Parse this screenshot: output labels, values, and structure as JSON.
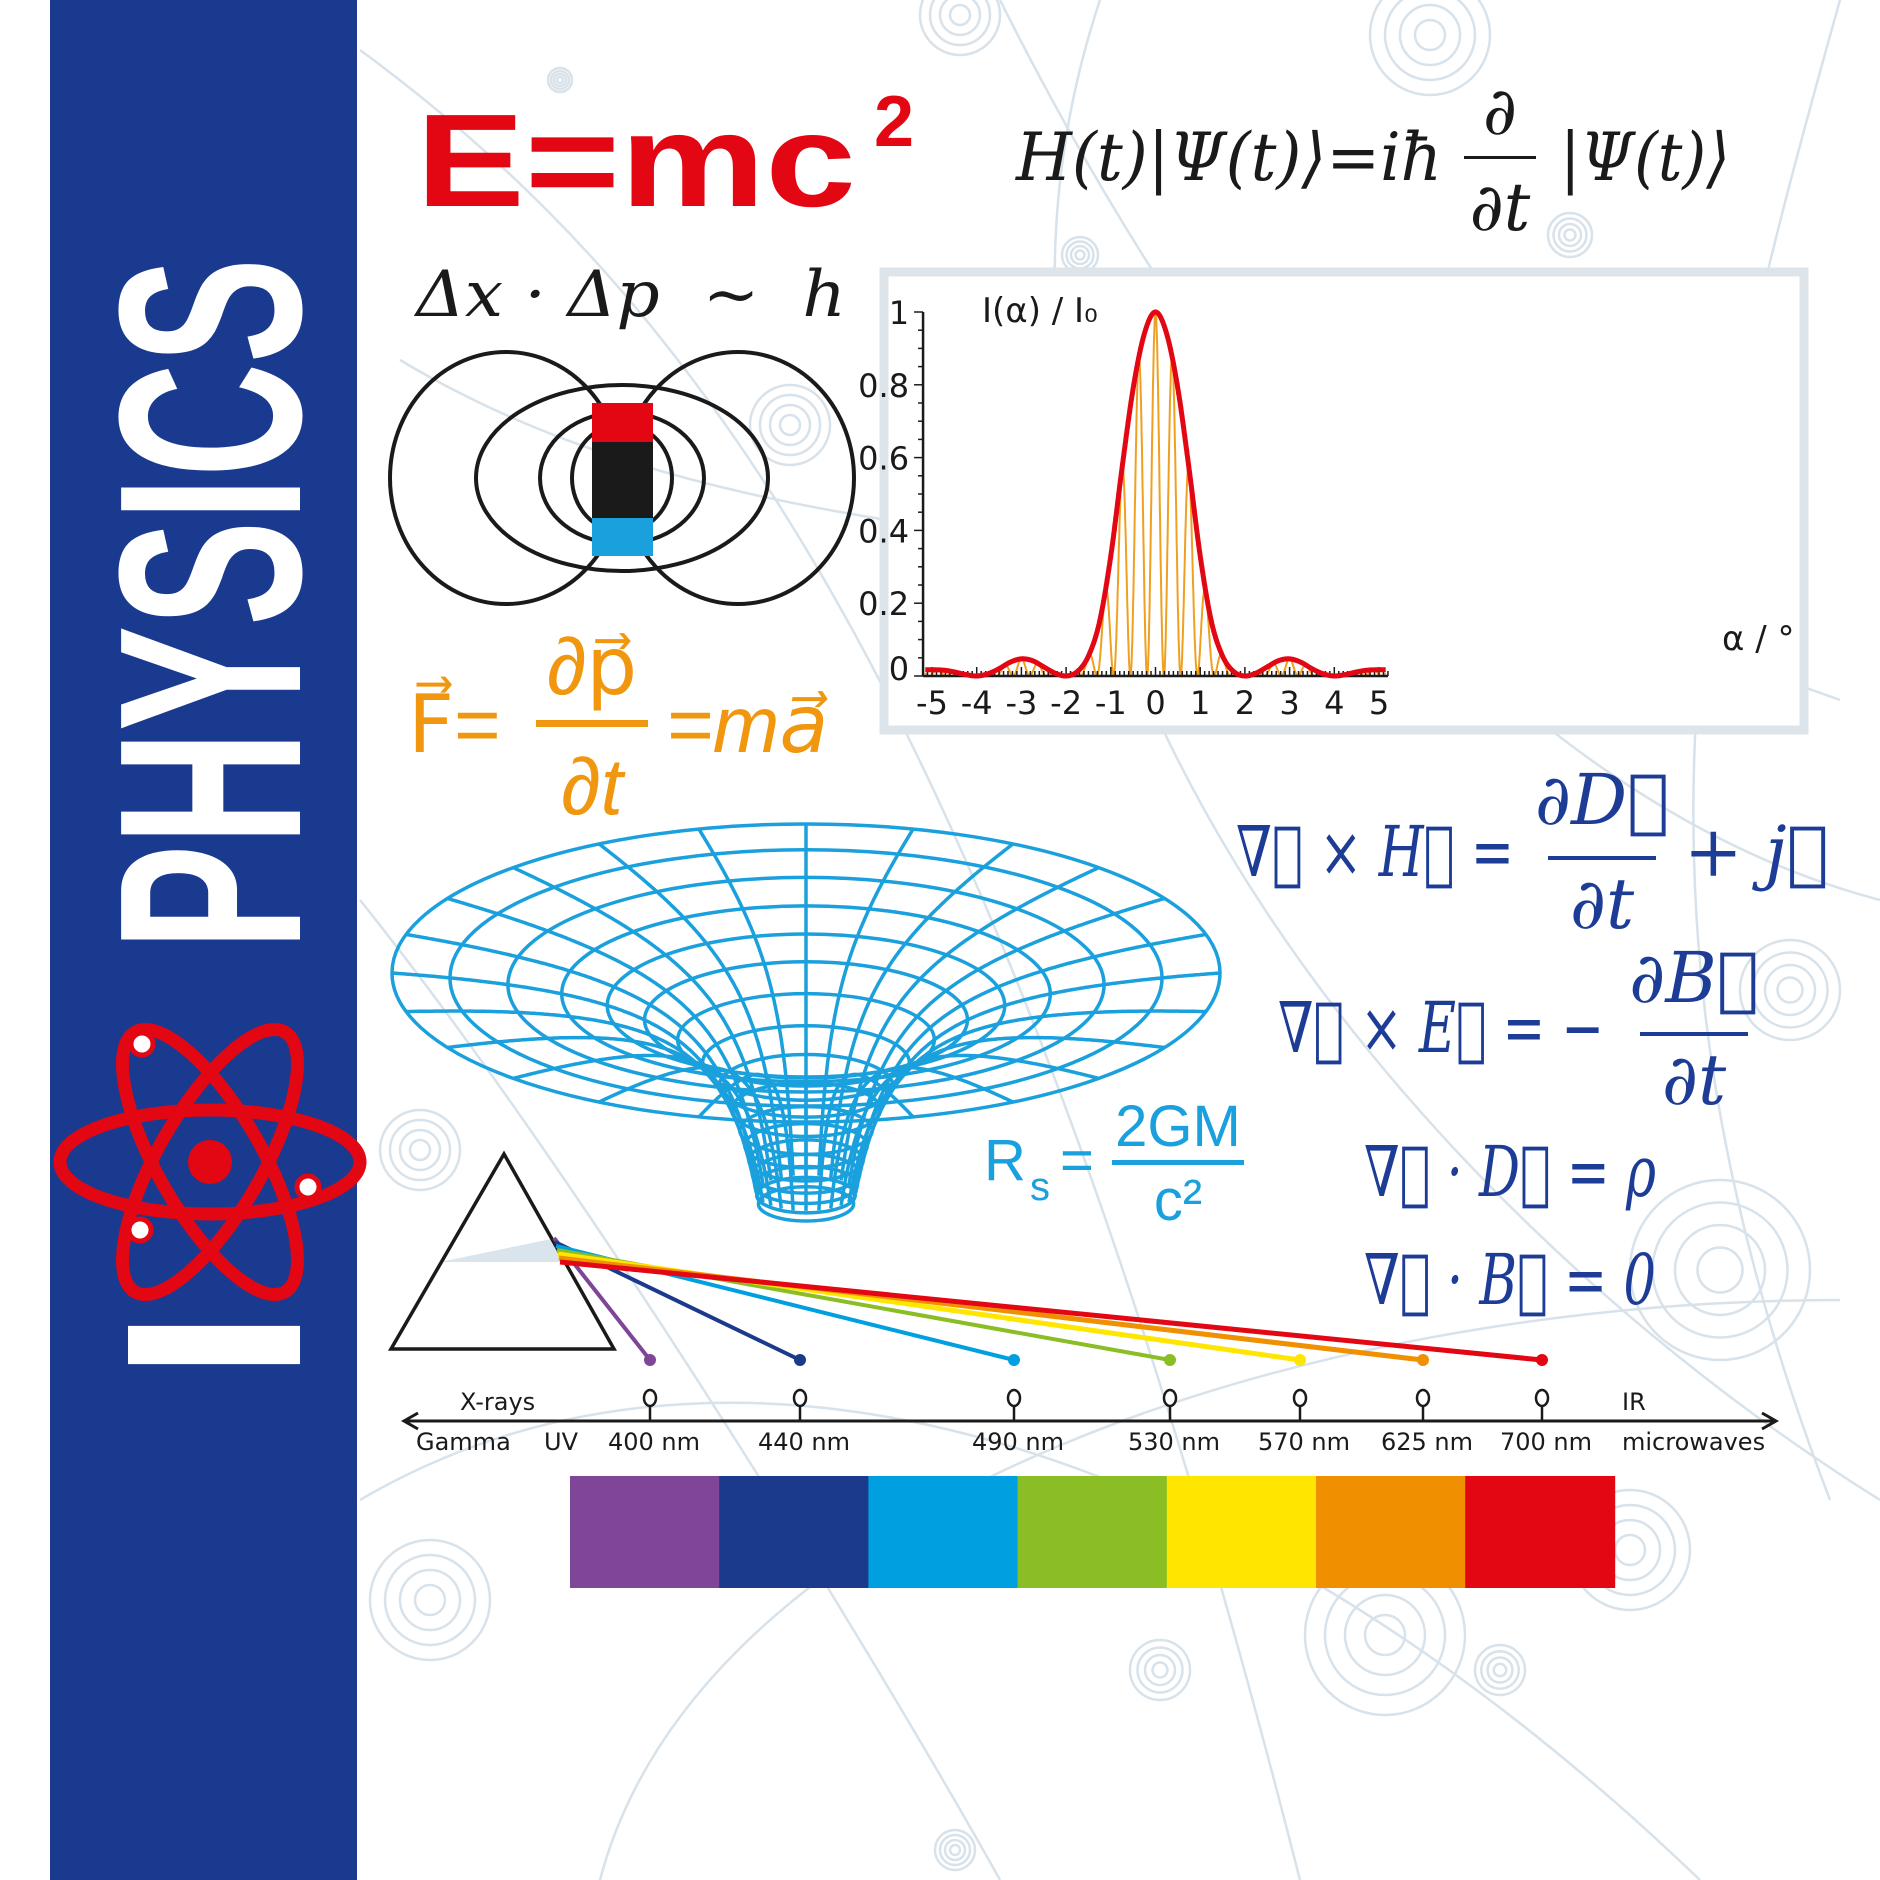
{
  "sidebar": {
    "prefix": "I",
    "heart_icon": "atom-icon",
    "title": "PHYSICS",
    "colors": {
      "background": "#1a3a8f",
      "text": "#ffffff",
      "atom": "#e30613"
    }
  },
  "formulas": {
    "mass_energy": {
      "base": "E=mc",
      "exponent": "2",
      "color": "#e30613"
    },
    "schrodinger": {
      "lhs": "H(t)|Ψ(t)⟩=iħ",
      "numerator": "∂",
      "denominator": "∂t",
      "rhs": "|Ψ(t)⟩",
      "color": "#1a1a1a"
    },
    "uncertainty": {
      "text": "Δx · Δp  ~  h",
      "color": "#1a1a1a"
    },
    "newton": {
      "lhs": "F⃗=",
      "numerator": "∂p⃗",
      "denominator": "∂t",
      "rhs": "=ma⃗",
      "color": "#f0960f"
    },
    "schwarzschild": {
      "symbol": "R",
      "subscript": "s",
      "equals": "=",
      "numerator": "2GM",
      "denominator": "c²",
      "color": "#1aa0dc"
    },
    "maxwell": {
      "color": "#1d3c96",
      "ampere": {
        "lhs": "∇⃗ × H⃗ =",
        "numerator": "∂D⃗",
        "denominator": "∂t",
        "rhs": "+ j⃗"
      },
      "faraday": {
        "lhs": "∇⃗ × E⃗ = −",
        "numerator": "∂B⃗",
        "denominator": "∂t"
      },
      "gauss_electric": {
        "text": "∇⃗ · D⃗ = ρ"
      },
      "gauss_magnetic": {
        "text": "∇⃗ · B⃗ = 0"
      }
    }
  },
  "magnet": {
    "colors": {
      "north": "#e30613",
      "body": "#1a1a1a",
      "south": "#1aa0dc"
    }
  },
  "wormhole": {
    "color": "#1aa0dc"
  },
  "chart_data": {
    "type": "line",
    "title": "",
    "ylabel": "I(α) / I₀",
    "xlabel": "α / °",
    "xlim": [
      -5.2,
      5.2
    ],
    "ylim": [
      0,
      1
    ],
    "grid": false,
    "legend": "none",
    "x_ticks": [
      "-5",
      "-4",
      "-3",
      "-2",
      "-1",
      "0",
      "1",
      "2",
      "3",
      "4",
      "5"
    ],
    "y_ticks": [
      "0",
      "0.2",
      "0.4",
      "0.6",
      "0.8",
      "1"
    ],
    "series": [
      {
        "role": "envelope",
        "color": "#e30613",
        "x_start": -5,
        "x_step": 0.25,
        "values": [
          0.017,
          0.016,
          0.011,
          0.004,
          0,
          0.006,
          0.02,
          0.038,
          0.047,
          0.042,
          0.025,
          0.008,
          0,
          0.012,
          0.055,
          0.15,
          0.33,
          0.57,
          0.79,
          0.94,
          1,
          0.94,
          0.79,
          0.57,
          0.33,
          0.15,
          0.055,
          0.012,
          0,
          0.008,
          0.025,
          0.042,
          0.047,
          0.038,
          0.02,
          0.006,
          0,
          0.004,
          0.011,
          0.016,
          0.017
        ]
      },
      {
        "role": "interference-fringes",
        "color": "#f0a020",
        "fringe_period": 0.375
      }
    ]
  },
  "spectrum": {
    "left_top": "X-rays",
    "left_bottom_1": "Gamma",
    "left_bottom_2": "UV",
    "right_top": "IR",
    "right_bottom": "microwaves",
    "lines": [
      {
        "label": "400 nm",
        "color": "#7f4597"
      },
      {
        "label": "440 nm",
        "color": "#1b3a8c"
      },
      {
        "label": "490 nm",
        "color": "#00a0e0"
      },
      {
        "label": "530 nm",
        "color": "#8bbd24"
      },
      {
        "label": "570 nm",
        "color": "#ffe600"
      },
      {
        "label": "625 nm",
        "color": "#f09000"
      },
      {
        "label": "700 nm",
        "color": "#e30613"
      }
    ]
  }
}
